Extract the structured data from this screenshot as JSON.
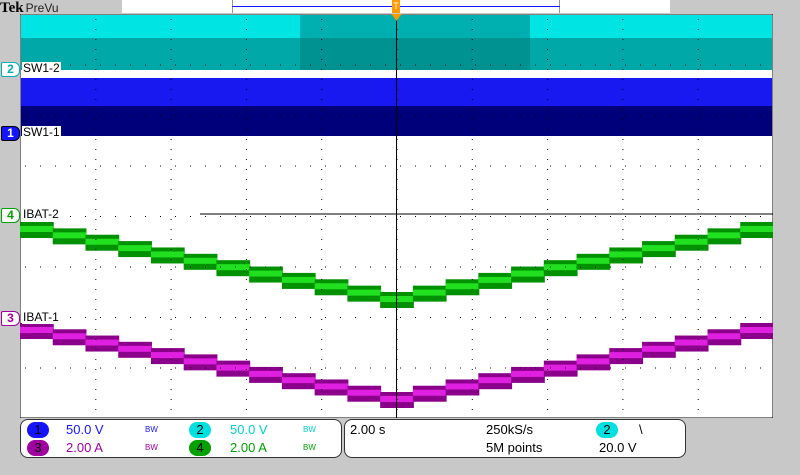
{
  "header": {
    "brand": "Tek",
    "mode": "PreVu"
  },
  "trigger_position_marker": "T",
  "channels": [
    {
      "num": "1",
      "label": "SW1-1",
      "scale": "50.0 V",
      "bw": "BW",
      "color": "#1414ff"
    },
    {
      "num": "2",
      "label": "SW1-2",
      "scale": "50.0 V",
      "bw": "BW",
      "color": "#00e0e0"
    },
    {
      "num": "3",
      "label": "IBAT-1",
      "scale": "2.00 A",
      "bw": "BW",
      "color": "#a000a0"
    },
    {
      "num": "4",
      "label": "IBAT-2",
      "scale": "2.00 A",
      "bw": "BW",
      "color": "#00a000"
    }
  ],
  "timebase": {
    "scale": "2.00 s",
    "sample_rate": "250kS/s",
    "record_length": "5M points"
  },
  "trigger": {
    "source": "2",
    "slope": "\\",
    "level": "20.0 V"
  }
}
